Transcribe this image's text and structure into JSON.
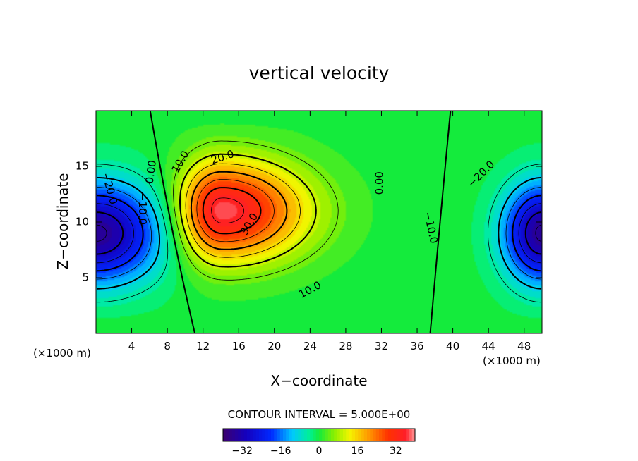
{
  "chart_data": {
    "type": "heatmap",
    "subtype": "filled-contour",
    "title": "vertical velocity",
    "xlabel": "X−coordinate",
    "ylabel": "Z−coordinate",
    "x_unit_left": "(×1000 m)",
    "x_unit_right": "(×1000 m)",
    "xlim": [
      0,
      50
    ],
    "ylim": [
      0,
      20
    ],
    "x_ticks": [
      4,
      8,
      12,
      16,
      20,
      24,
      28,
      32,
      36,
      40,
      44,
      48
    ],
    "y_ticks": [
      5,
      10,
      15
    ],
    "contour_interval_text": "CONTOUR INTERVAL = 5.000E+00",
    "contour_interval": 5,
    "value_range": [
      -40,
      40
    ],
    "colorbar": {
      "min": -40,
      "max": 40,
      "ticks": [
        -32,
        -16,
        0,
        16,
        32
      ],
      "tick_labels": [
        "−32",
        "−16",
        "0",
        "16",
        "32"
      ]
    },
    "features": [
      {
        "kind": "max",
        "x": 14,
        "z": 11,
        "value": 38
      },
      {
        "kind": "min",
        "x": 0,
        "z": 9,
        "value": -36
      },
      {
        "kind": "min",
        "x": 50,
        "z": 9,
        "value": -36
      }
    ],
    "contour_labels": [
      {
        "text": "−20.0",
        "x": 1.5,
        "z": 13.0,
        "angle": 75
      },
      {
        "text": "−10.0",
        "x": 5.2,
        "z": 11.2,
        "angle": 90
      },
      {
        "text": "0.00",
        "x": 6.2,
        "z": 14.5,
        "angle": -82
      },
      {
        "text": "10.0",
        "x": 9.5,
        "z": 15.4,
        "angle": -60
      },
      {
        "text": "20.0",
        "x": 14.2,
        "z": 15.8,
        "angle": -18
      },
      {
        "text": "30.0",
        "x": 17.2,
        "z": 9.8,
        "angle": -60
      },
      {
        "text": "10.0",
        "x": 24.0,
        "z": 3.9,
        "angle": -28
      },
      {
        "text": "0.00",
        "x": 31.8,
        "z": 13.5,
        "angle": -90
      },
      {
        "text": "−10.0",
        "x": 37.5,
        "z": 9.5,
        "angle": 78
      },
      {
        "text": "−20.0",
        "x": 43.2,
        "z": 14.3,
        "angle": -45
      }
    ]
  }
}
